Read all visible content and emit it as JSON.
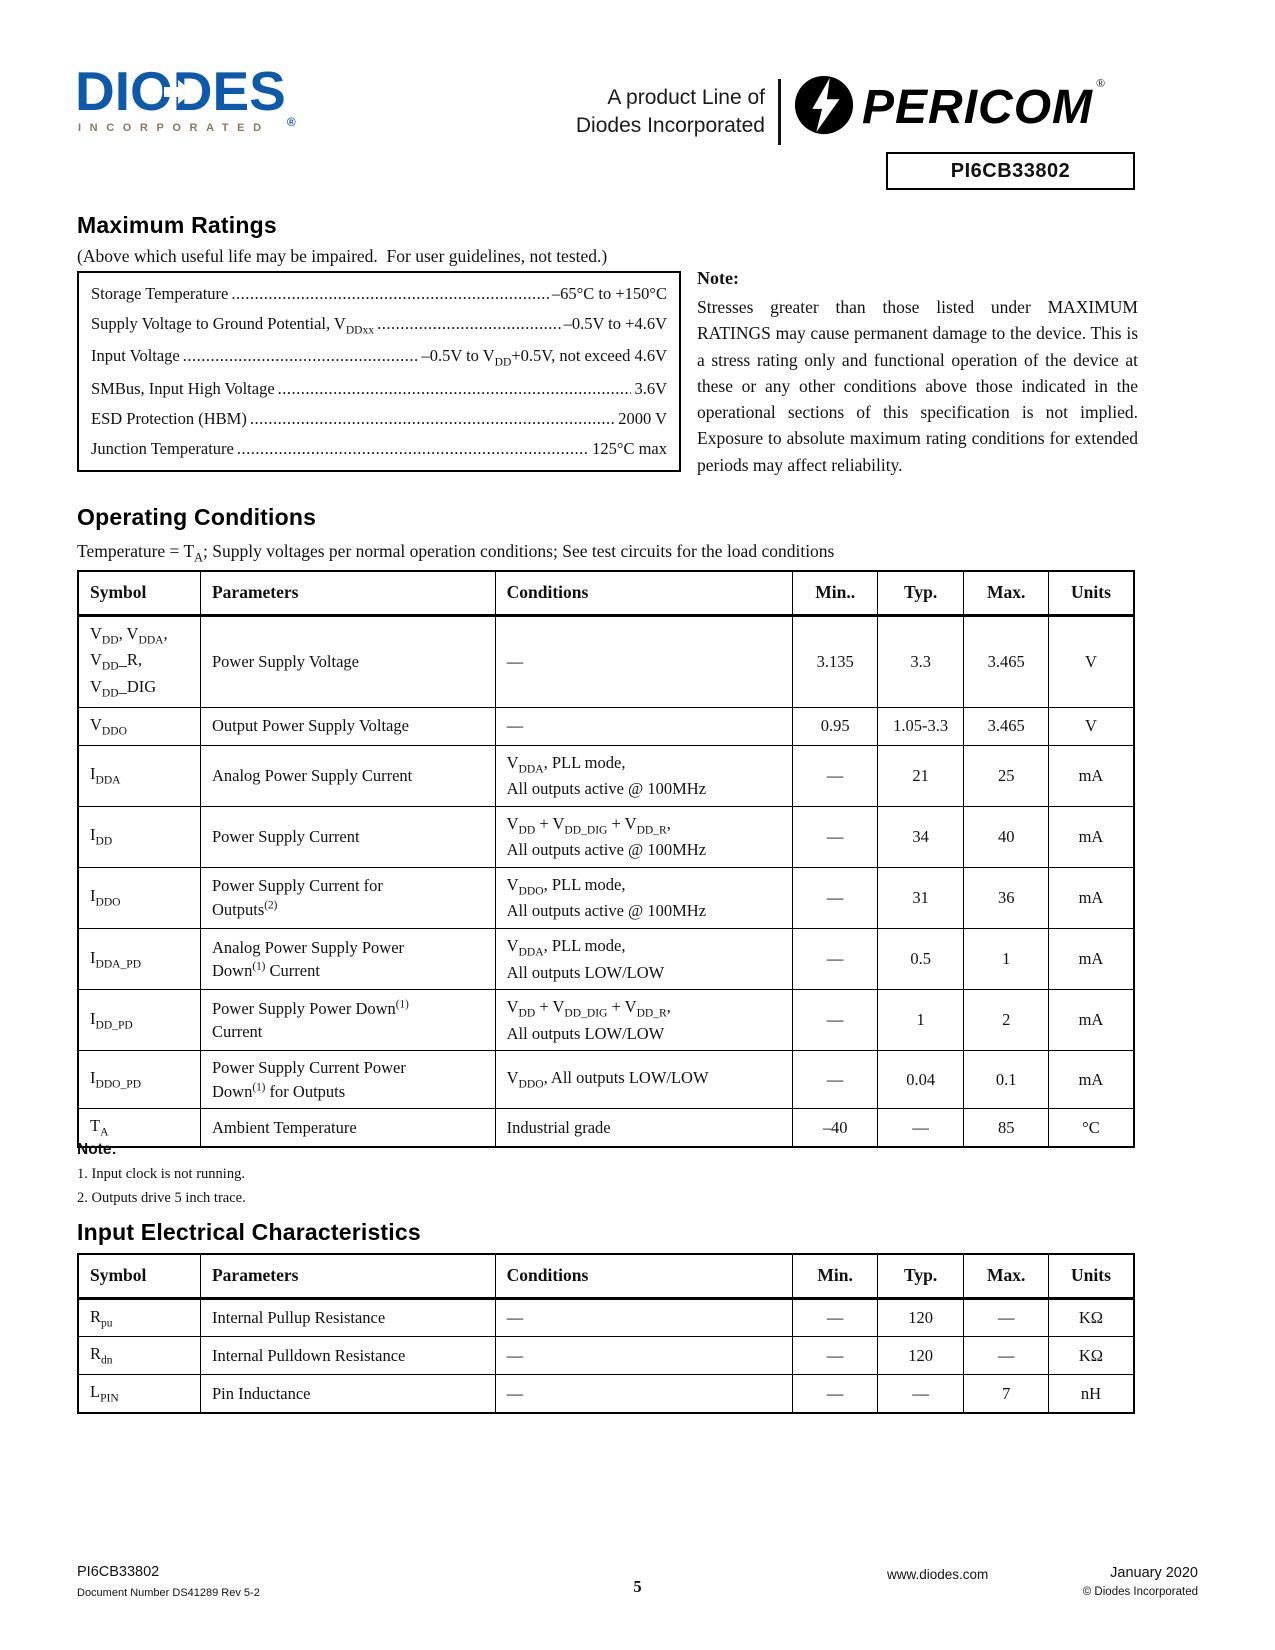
{
  "colors": {
    "logo-blue": "#0e59a9",
    "logo-gray": "#8a7a5f"
  },
  "header": {
    "diodes_wordmark": "DIODES",
    "diodes_reg": "®",
    "diodes_sub": "INCORPORATED",
    "product_line_1": "A product Line of",
    "product_line_2": "Diodes Incorporated",
    "pericom_wordmark": "PERICOM",
    "pericom_reg": "®",
    "part_number": "PI6CB33802"
  },
  "maximum_ratings": {
    "title": "Maximum Ratings",
    "subtitle": "(Above which useful life may be impaired.  For user guidelines, not tested.)",
    "items": [
      {
        "label": "Storage Temperature",
        "value": "–65°C to +150°C"
      },
      {
        "label": "Supply Voltage to Ground Potential, V~DDxx~",
        "value": "–0.5V to +4.6V"
      },
      {
        "label": "Input Voltage",
        "value": "–0.5V to V~DD~+0.5V, not exceed 4.6V"
      },
      {
        "label": "SMBus, Input High Voltage",
        "value": "3.6V"
      },
      {
        "label": "ESD Protection (HBM)",
        "value": "2000 V"
      },
      {
        "label": "Junction Temperature",
        "value": "125°C max"
      }
    ],
    "note_title": "Note:",
    "note_text": "Stresses greater than those listed under MAXIMUM RATINGS may cause permanent damage to the device. This is a stress rating only and functional operation of the device at these or any other conditions above those indicated in the operational sections of this specification is not implied. Exposure to absolute maximum rating conditions for extended periods may affect reliability."
  },
  "operating_conditions": {
    "title": "Operating Conditions",
    "subtitle": "Temperature = T~A~; Supply voltages per normal operation conditions; See test circuits for the load conditions",
    "table": {
      "headers": [
        "Symbol",
        "Parameters",
        "Conditions",
        "Min..",
        "Typ.",
        "Max.",
        "Units"
      ],
      "rows": [
        [
          "V~DD~, V~DDA~,\nV~DD~_R,\nV~DD~_DIG",
          "Power Supply Voltage",
          "—",
          "3.135",
          "3.3",
          "3.465",
          "V"
        ],
        [
          "V~DDO~",
          "Output Power Supply Voltage",
          "—",
          "0.95",
          "1.05-3.3",
          "3.465",
          "V"
        ],
        [
          "I~DDA~",
          "Analog Power Supply Current",
          "V~DDA~, PLL mode,\nAll outputs active @ 100MHz",
          "—",
          "21",
          "25",
          "mA"
        ],
        [
          "I~DD~",
          "Power Supply Current",
          "V~DD~ + V~DD_DIG~ + V~DD_R~,\nAll outputs active @ 100MHz",
          "—",
          "34",
          "40",
          "mA"
        ],
        [
          "I~DDO~",
          "Power Supply Current for\nOutputs^(2)^",
          "V~DDO~, PLL mode,\nAll outputs active @ 100MHz",
          "—",
          "31",
          "36",
          "mA"
        ],
        [
          "I~DDA_PD~",
          "Analog Power Supply Power\nDown^(1)^ Current",
          "V~DDA~, PLL mode,\nAll outputs LOW/LOW",
          "—",
          "0.5",
          "1",
          "mA"
        ],
        [
          "I~DD_PD~",
          "Power Supply Power Down^(1)^\nCurrent",
          "V~DD~ + V~DD_DIG~ + V~DD_R~,\nAll outputs LOW/LOW",
          "—",
          "1",
          "2",
          "mA"
        ],
        [
          "I~DDO_PD~",
          "Power Supply Current Power\nDown^(1)^ for Outputs",
          "V~DDO~, All outputs LOW/LOW",
          "—",
          "0.04",
          "0.1",
          "mA"
        ],
        [
          "T~A~",
          "Ambient Temperature",
          "Industrial grade",
          "–40",
          "—",
          "85",
          "°C"
        ]
      ]
    },
    "note_title": "Note:",
    "notes": [
      "1. Input clock is not running.",
      "2. Outputs drive 5 inch trace."
    ]
  },
  "input_electrical": {
    "title": "Input Electrical Characteristics",
    "table": {
      "headers": [
        "Symbol",
        "Parameters",
        "Conditions",
        "Min.",
        "Typ.",
        "Max.",
        "Units"
      ],
      "rows": [
        [
          "R~pu~",
          "Internal Pullup Resistance",
          "—",
          "—",
          "120",
          "—",
          "KΩ"
        ],
        [
          "R~dn~",
          "Internal Pulldown Resistance",
          "—",
          "—",
          "120",
          "—",
          "KΩ"
        ],
        [
          "L~PIN~",
          "Pin Inductance",
          "—",
          "—",
          "—",
          "7",
          "nH"
        ]
      ]
    }
  },
  "footer": {
    "part": "PI6CB33802",
    "doc_number": "Document Number DS41289 Rev 5-2",
    "page": "5",
    "url": "www.diodes.com",
    "date": "January 2020",
    "copyright": "©  Diodes Incorporated"
  }
}
